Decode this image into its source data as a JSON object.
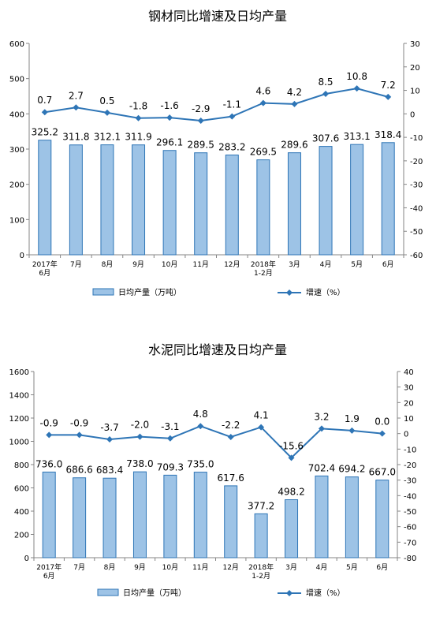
{
  "chart_data": [
    {
      "type": "bar+line",
      "title": "钢材同比增速及日均产量",
      "categories": [
        [
          "2017年",
          "6月"
        ],
        [
          "7月"
        ],
        [
          "8月"
        ],
        [
          "9月"
        ],
        [
          "10月"
        ],
        [
          "11月"
        ],
        [
          "12月"
        ],
        [
          "2018年",
          "1-2月"
        ],
        [
          "3月"
        ],
        [
          "4月"
        ],
        [
          "5月"
        ],
        [
          "6月"
        ]
      ],
      "series": [
        {
          "name": "日均产量（万吨）",
          "type": "bar",
          "axis": "left",
          "values": [
            325.2,
            311.8,
            312.1,
            311.9,
            296.1,
            289.5,
            283.2,
            269.5,
            289.6,
            307.6,
            313.1,
            318.4
          ],
          "labels": [
            "325.2",
            "311.8",
            "312.1",
            "311.9",
            "296.1",
            "289.5",
            "283.2",
            "269.5",
            "289.6",
            "307.6",
            "313.1",
            "318.4"
          ]
        },
        {
          "name": "增速（%）",
          "type": "line",
          "axis": "right",
          "values": [
            0.7,
            2.7,
            0.5,
            -1.8,
            -1.6,
            -2.9,
            -1.1,
            4.6,
            4.2,
            8.5,
            10.8,
            7.2
          ],
          "labels": [
            "0.7",
            "2.7",
            "0.5",
            "-1.8",
            "-1.6",
            "-2.9",
            "-1.1",
            "4.6",
            "4.2",
            "8.5",
            "10.8",
            "7.2"
          ]
        }
      ],
      "y_left": {
        "min": 0,
        "max": 600,
        "step": 100
      },
      "y_right": {
        "min": -60,
        "max": 30,
        "step": 10
      },
      "colors": {
        "bar_fill": "#9dc3e6",
        "bar_stroke": "#2e75b6",
        "line": "#2e75b6"
      },
      "legend_position": "bottom"
    },
    {
      "type": "bar+line",
      "title": "水泥同比增速及日均产量",
      "categories": [
        [
          "2017年",
          "6月"
        ],
        [
          "7月"
        ],
        [
          "8月"
        ],
        [
          "9月"
        ],
        [
          "10月"
        ],
        [
          "11月"
        ],
        [
          "12月"
        ],
        [
          "2018年",
          "1-2月"
        ],
        [
          "3月"
        ],
        [
          "4月"
        ],
        [
          "5月"
        ],
        [
          "6月"
        ]
      ],
      "series": [
        {
          "name": "日均产量（万吨）",
          "type": "bar",
          "axis": "left",
          "values": [
            736.0,
            686.6,
            683.4,
            738.0,
            709.3,
            735.0,
            617.6,
            377.2,
            498.2,
            702.4,
            694.2,
            667.0
          ],
          "labels": [
            "736.0",
            "686.6",
            "683.4",
            "738.0",
            "709.3",
            "735.0",
            "617.6",
            "377.2",
            "498.2",
            "702.4",
            "694.2",
            "667.0"
          ]
        },
        {
          "name": "增速（%）",
          "type": "line",
          "axis": "right",
          "values": [
            -0.9,
            -0.9,
            -3.7,
            -2.0,
            -3.1,
            4.8,
            -2.2,
            4.1,
            -15.6,
            3.2,
            1.9,
            0.0
          ],
          "labels": [
            "-0.9",
            "-0.9",
            "-3.7",
            "-2.0",
            "-3.1",
            "4.8",
            "-2.2",
            "4.1",
            "-15.6",
            "3.2",
            "1.9",
            "0.0"
          ]
        }
      ],
      "y_left": {
        "min": 0,
        "max": 1600,
        "step": 200
      },
      "y_right": {
        "min": -80,
        "max": 40,
        "step": 10
      },
      "colors": {
        "bar_fill": "#9dc3e6",
        "bar_stroke": "#2e75b6",
        "line": "#2e75b6"
      },
      "legend_position": "bottom"
    }
  ]
}
